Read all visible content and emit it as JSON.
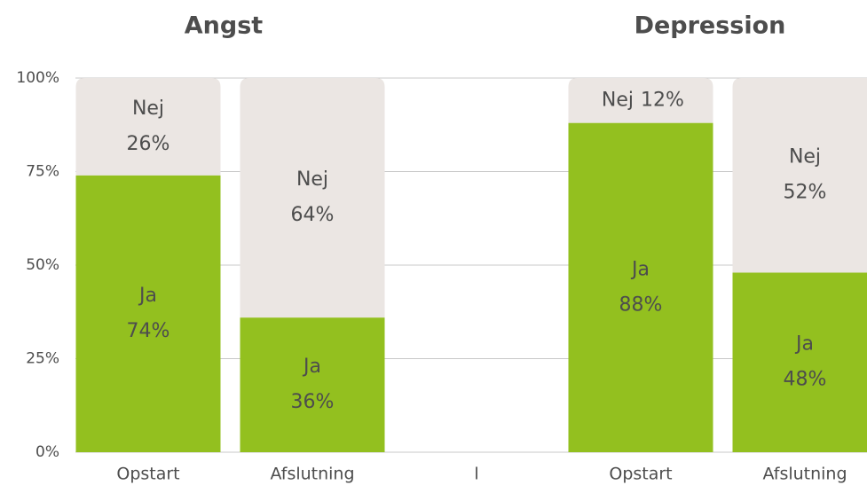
{
  "chart_data": {
    "type": "stacked_bar",
    "group_titles": [
      "Angst",
      "Depression"
    ],
    "categories": [
      "Opstart",
      "Afslutning",
      "l",
      "Opstart",
      "Afslutning"
    ],
    "series": [
      {
        "name": "Ja",
        "color": "#93c01f",
        "values": [
          74,
          36,
          null,
          88,
          48
        ],
        "value_labels": [
          "74%",
          "36%",
          null,
          "88%",
          "48%"
        ]
      },
      {
        "name": "Nej",
        "color": "#ebe6e3",
        "values": [
          26,
          64,
          null,
          12,
          52
        ],
        "value_labels": [
          "26%",
          "64%",
          null,
          "12%",
          "52%"
        ]
      }
    ],
    "ylim": [
      0,
      100
    ],
    "yticks": [
      {
        "value": 0,
        "label": "0%"
      },
      {
        "value": 25,
        "label": "25%"
      },
      {
        "value": 50,
        "label": "50%"
      },
      {
        "value": 75,
        "label": "75%"
      },
      {
        "value": 100,
        "label": "100%"
      }
    ],
    "grid": true
  }
}
